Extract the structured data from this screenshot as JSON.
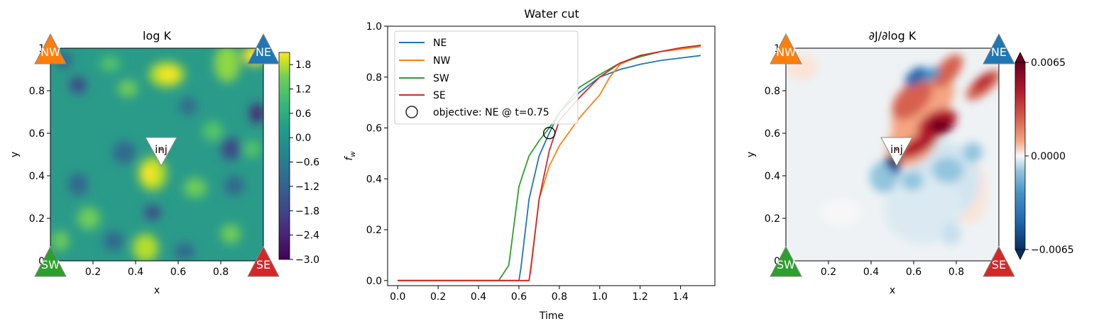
{
  "wells": [
    {
      "label": "NW",
      "color": "#ff7f0e"
    },
    {
      "label": "NE",
      "color": "#1f77b4"
    },
    {
      "label": "SW",
      "color": "#2ca02c"
    },
    {
      "label": "SE",
      "color": "#d62728"
    }
  ],
  "injector": {
    "label": "inj"
  },
  "chart_data": [
    {
      "type": "heatmap",
      "title": "log K",
      "xlabel": "x",
      "ylabel": "y",
      "xlim": [
        0,
        1
      ],
      "ylim": [
        0,
        1
      ],
      "x_ticks": [
        "0",
        "0.2",
        "0.4",
        "0.6",
        "0.8",
        "1"
      ],
      "y_ticks": [
        "0",
        "0.2",
        "0.4",
        "0.6",
        "0.8",
        "1"
      ],
      "colormap": "viridis",
      "colorbar_ticks": [
        "1.8",
        "1.2",
        "0.6",
        "0.0",
        "−0.6",
        "−1.2",
        "−1.8",
        "−2.4",
        "−3.0"
      ],
      "colorbar_range": [
        -3.0,
        2.1
      ]
    },
    {
      "type": "line",
      "title": "Water cut",
      "xlabel": "Time",
      "ylabel": "f_w",
      "xlim": [
        -0.05,
        1.57
      ],
      "ylim": [
        -0.02,
        1.0
      ],
      "x_ticks": [
        "0.0",
        "0.2",
        "0.4",
        "0.6",
        "0.8",
        "1.0",
        "1.2",
        "1.4"
      ],
      "y_ticks": [
        "0.0",
        "0.2",
        "0.4",
        "0.6",
        "0.8",
        "1.0"
      ],
      "legend_position": "top-left",
      "series": [
        {
          "name": "NE",
          "color": "#1f77b4",
          "x": [
            0,
            0.6,
            0.61,
            0.65,
            0.7,
            0.75,
            0.8,
            0.9,
            1.0,
            1.1,
            1.2,
            1.3,
            1.4,
            1.5
          ],
          "y": [
            0,
            0,
            0.05,
            0.32,
            0.49,
            0.58,
            0.66,
            0.74,
            0.8,
            0.83,
            0.85,
            0.865,
            0.875,
            0.885
          ]
        },
        {
          "name": "NW",
          "color": "#ff7f0e",
          "x": [
            0,
            0.65,
            0.66,
            0.7,
            0.75,
            0.8,
            0.9,
            1.0,
            1.05,
            1.1,
            1.2,
            1.3,
            1.4,
            1.5
          ],
          "y": [
            0,
            0,
            0.06,
            0.32,
            0.45,
            0.53,
            0.64,
            0.73,
            0.8,
            0.85,
            0.885,
            0.9,
            0.91,
            0.92
          ]
        },
        {
          "name": "SW",
          "color": "#2ca02c",
          "x": [
            0,
            0.5,
            0.55,
            0.6,
            0.65,
            0.7,
            0.75,
            0.8,
            0.9,
            1.0,
            1.1,
            1.2,
            1.3,
            1.4,
            1.5
          ],
          "y": [
            0,
            0,
            0.06,
            0.37,
            0.49,
            0.55,
            0.6,
            0.66,
            0.76,
            0.81,
            0.855,
            0.88,
            0.9,
            0.915,
            0.925
          ]
        },
        {
          "name": "SE",
          "color": "#d62728",
          "x": [
            0,
            0.65,
            0.66,
            0.7,
            0.75,
            0.8,
            0.9,
            1.0,
            1.1,
            1.2,
            1.3,
            1.4,
            1.5
          ],
          "y": [
            0,
            0,
            0.05,
            0.32,
            0.51,
            0.63,
            0.72,
            0.8,
            0.855,
            0.885,
            0.9,
            0.915,
            0.925
          ]
        }
      ],
      "annotation": {
        "label": "objective: NE @ t=0.75",
        "x": 0.75,
        "y": 0.58
      }
    },
    {
      "type": "heatmap",
      "title": "∂J/∂log K",
      "xlabel": "x",
      "ylabel": "y",
      "xlim": [
        0,
        1
      ],
      "ylim": [
        0,
        1
      ],
      "x_ticks": [
        "0",
        "0.2",
        "0.4",
        "0.6",
        "0.8",
        "1"
      ],
      "y_ticks": [
        "0",
        "0.2",
        "0.4",
        "0.6",
        "0.8",
        "1"
      ],
      "colormap": "RdBu_r",
      "colorbar_ticks": [
        "0.0065",
        "0.0000",
        "−0.0065"
      ],
      "colorbar_range": [
        -0.0065,
        0.0065
      ]
    }
  ]
}
